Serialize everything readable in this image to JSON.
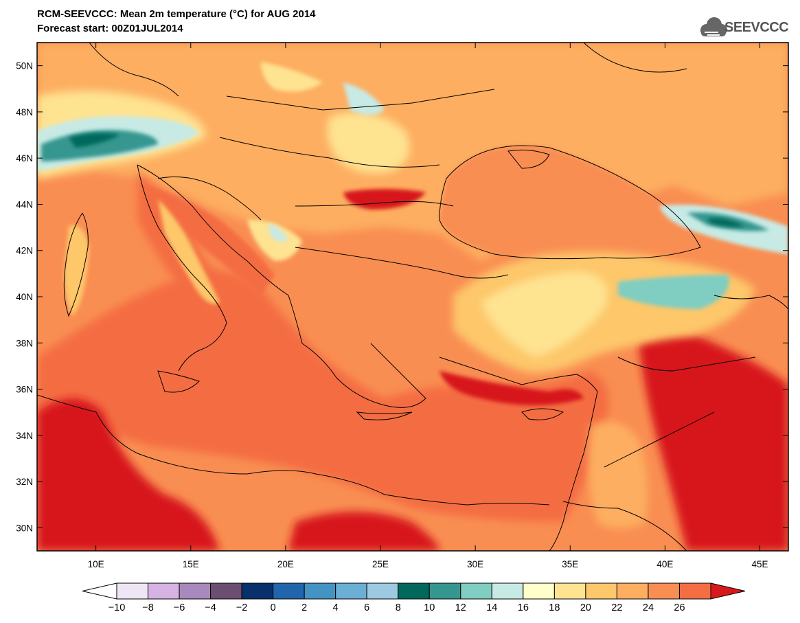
{
  "header": {
    "title": "RCM-SEEVCCC: Mean 2m temperature (°C) for AUG 2014",
    "subtitle": "Forecast start: 00Z01JUL2014"
  },
  "logo": {
    "text": "SEEVCCC",
    "icon": "cloud-icon"
  },
  "map": {
    "variable": "Mean 2m temperature",
    "unit": "°C",
    "lon_range": [
      6.9,
      46.5
    ],
    "lat_range": [
      29.0,
      51.0
    ],
    "lat_ticks": [
      {
        "value": 30,
        "label": "30N"
      },
      {
        "value": 32,
        "label": "32N"
      },
      {
        "value": 34,
        "label": "34N"
      },
      {
        "value": 36,
        "label": "36N"
      },
      {
        "value": 38,
        "label": "38N"
      },
      {
        "value": 40,
        "label": "40N"
      },
      {
        "value": 42,
        "label": "42N"
      },
      {
        "value": 44,
        "label": "44N"
      },
      {
        "value": 46,
        "label": "46N"
      },
      {
        "value": 48,
        "label": "48N"
      },
      {
        "value": 50,
        "label": "50N"
      }
    ],
    "lon_ticks": [
      {
        "value": 10,
        "label": "10E"
      },
      {
        "value": 15,
        "label": "15E"
      },
      {
        "value": 20,
        "label": "20E"
      },
      {
        "value": 25,
        "label": "25E"
      },
      {
        "value": 30,
        "label": "30E"
      },
      {
        "value": 35,
        "label": "35E"
      },
      {
        "value": 40,
        "label": "40E"
      },
      {
        "value": 45,
        "label": "45E"
      }
    ]
  },
  "colorbar": {
    "labels": [
      "-10",
      "-8",
      "-6",
      "-4",
      "-2",
      "0",
      "2",
      "4",
      "6",
      "8",
      "10",
      "12",
      "14",
      "16",
      "18",
      "20",
      "22",
      "24",
      "26"
    ],
    "below_color": "#ffffff",
    "above_color": "#d7191c",
    "colors": [
      "#efe6f5",
      "#d6b3e3",
      "#a889bd",
      "#6c4e72",
      "#08306b",
      "#2166ac",
      "#4393c3",
      "#6baed6",
      "#9ecae1",
      "#00695c",
      "#35978f",
      "#80cdc1",
      "#c7eae5",
      "#ffffcc",
      "#fee391",
      "#fdc76b",
      "#fdae61",
      "#f98e52",
      "#f46d43"
    ]
  }
}
